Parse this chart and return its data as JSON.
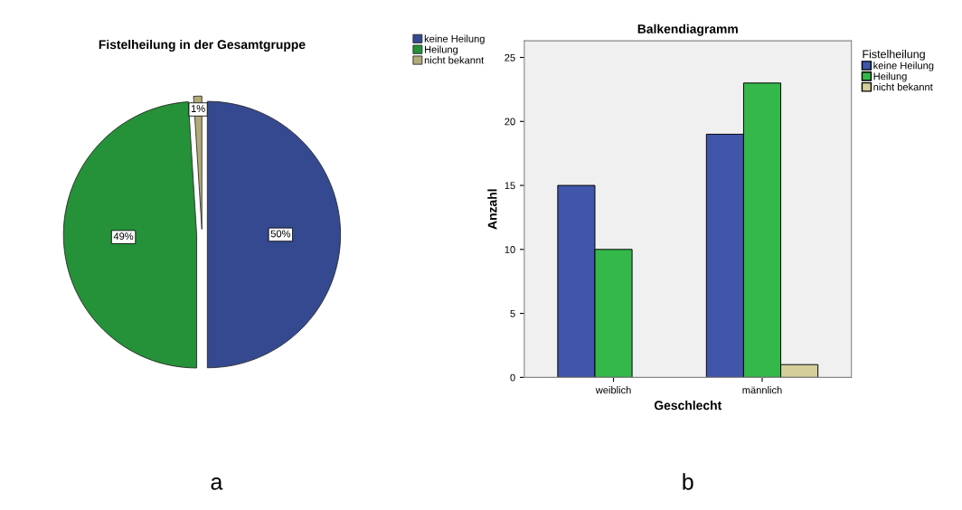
{
  "chart_data": [
    {
      "type": "pie",
      "title": "Fistelheilung in der Gesamtgruppe",
      "categories": [
        "keine Heilung",
        "Heilung",
        "nicht bekannt"
      ],
      "values": [
        50,
        49,
        1
      ],
      "colors": [
        "#34498f",
        "#259138",
        "#b3aa7a"
      ],
      "value_labels": [
        "50%",
        "49%",
        "1%"
      ],
      "legend": "top right",
      "annotations": [
        "a"
      ]
    },
    {
      "type": "bar",
      "title": "Balkendiagramm",
      "xlabel": "Geschlecht",
      "ylabel": "Anzahl",
      "legend_title": "Fistelheilung",
      "categories": [
        "weiblich",
        "männlich"
      ],
      "series": [
        {
          "name": "keine Heilung",
          "color": "#3f56ab",
          "values": [
            15,
            19
          ]
        },
        {
          "name": "Heilung",
          "color": "#33b849",
          "values": [
            10,
            23
          ]
        },
        {
          "name": "nicht bekannt",
          "color": "#d4cf9a",
          "values": [
            null,
            1
          ]
        }
      ],
      "ylim": [
        0,
        26.3
      ],
      "yticks": [
        0,
        5,
        10,
        15,
        20,
        25
      ],
      "grid": false,
      "legend": "right",
      "annotations": [
        "b"
      ]
    }
  ]
}
